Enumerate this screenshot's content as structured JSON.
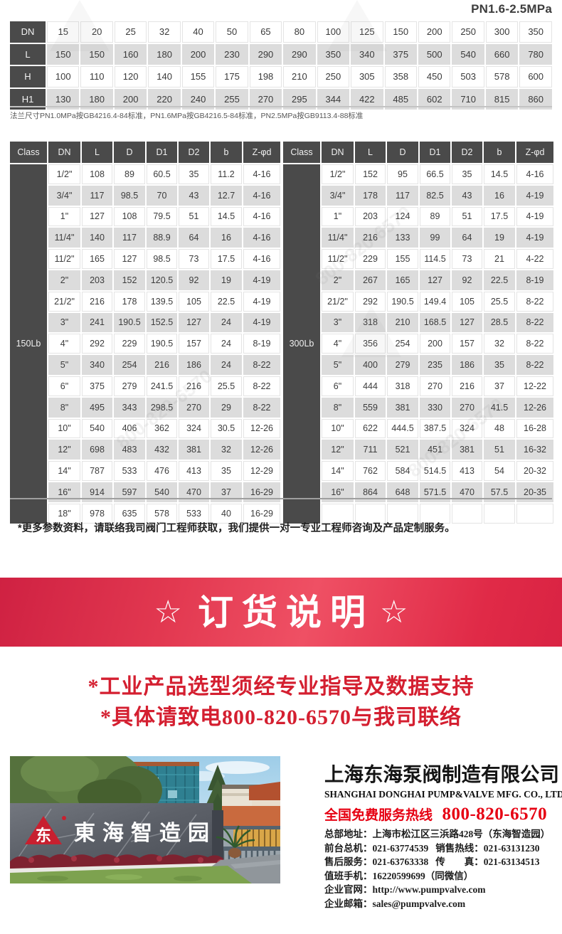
{
  "header": {
    "pressure_label": "PN1.6-2.5MPa"
  },
  "dimensions_table": {
    "rows": [
      {
        "label": "DN",
        "values": [
          "15",
          "20",
          "25",
          "32",
          "40",
          "50",
          "65",
          "80",
          "100",
          "125",
          "150",
          "200",
          "250",
          "300",
          "350"
        ]
      },
      {
        "label": "L",
        "values": [
          "150",
          "150",
          "160",
          "180",
          "200",
          "230",
          "290",
          "290",
          "350",
          "340",
          "375",
          "500",
          "540",
          "660",
          "780"
        ]
      },
      {
        "label": "H",
        "values": [
          "100",
          "110",
          "120",
          "140",
          "155",
          "175",
          "198",
          "210",
          "250",
          "305",
          "358",
          "450",
          "503",
          "578",
          "600"
        ]
      },
      {
        "label": "H1",
        "values": [
          "130",
          "180",
          "200",
          "220",
          "240",
          "255",
          "270",
          "295",
          "344",
          "422",
          "485",
          "602",
          "710",
          "815",
          "860"
        ]
      }
    ]
  },
  "flange_note": "法兰尺寸PN1.0MPa按GB4216.4-84标准，PN1.6MPa按GB4216.5-84标准，PN2.5MPa按GB9113.4-88标准",
  "class_tables": [
    {
      "class_label": "150Lb",
      "headers": [
        "Class",
        "DN",
        "L",
        "D",
        "D1",
        "D2",
        "b",
        "Z-φd"
      ],
      "rows": [
        [
          "1/2\"",
          "108",
          "89",
          "60.5",
          "35",
          "11.2",
          "4-16"
        ],
        [
          "3/4\"",
          "117",
          "98.5",
          "70",
          "43",
          "12.7",
          "4-16"
        ],
        [
          "1\"",
          "127",
          "108",
          "79.5",
          "51",
          "14.5",
          "4-16"
        ],
        [
          "11/4\"",
          "140",
          "117",
          "88.9",
          "64",
          "16",
          "4-16"
        ],
        [
          "11/2\"",
          "165",
          "127",
          "98.5",
          "73",
          "17.5",
          "4-16"
        ],
        [
          "2\"",
          "203",
          "152",
          "120.5",
          "92",
          "19",
          "4-19"
        ],
        [
          "21/2\"",
          "216",
          "178",
          "139.5",
          "105",
          "22.5",
          "4-19"
        ],
        [
          "3\"",
          "241",
          "190.5",
          "152.5",
          "127",
          "24",
          "4-19"
        ],
        [
          "4\"",
          "292",
          "229",
          "190.5",
          "157",
          "24",
          "8-19"
        ],
        [
          "5\"",
          "340",
          "254",
          "216",
          "186",
          "24",
          "8-22"
        ],
        [
          "6\"",
          "375",
          "279",
          "241.5",
          "216",
          "25.5",
          "8-22"
        ],
        [
          "8\"",
          "495",
          "343",
          "298.5",
          "270",
          "29",
          "8-22"
        ],
        [
          "10\"",
          "540",
          "406",
          "362",
          "324",
          "30.5",
          "12-26"
        ],
        [
          "12\"",
          "698",
          "483",
          "432",
          "381",
          "32",
          "12-26"
        ],
        [
          "14\"",
          "787",
          "533",
          "476",
          "413",
          "35",
          "12-29"
        ],
        [
          "16\"",
          "914",
          "597",
          "540",
          "470",
          "37",
          "16-29"
        ],
        [
          "18\"",
          "978",
          "635",
          "578",
          "533",
          "40",
          "16-29"
        ]
      ]
    },
    {
      "class_label": "300Lb",
      "headers": [
        "Class",
        "DN",
        "L",
        "D",
        "D1",
        "D2",
        "b",
        "Z-φd"
      ],
      "rows": [
        [
          "1/2\"",
          "152",
          "95",
          "66.5",
          "35",
          "14.5",
          "4-16"
        ],
        [
          "3/4\"",
          "178",
          "117",
          "82.5",
          "43",
          "16",
          "4-19"
        ],
        [
          "1\"",
          "203",
          "124",
          "89",
          "51",
          "17.5",
          "4-19"
        ],
        [
          "11/4\"",
          "216",
          "133",
          "99",
          "64",
          "19",
          "4-19"
        ],
        [
          "11/2\"",
          "229",
          "155",
          "114.5",
          "73",
          "21",
          "4-22"
        ],
        [
          "2\"",
          "267",
          "165",
          "127",
          "92",
          "22.5",
          "8-19"
        ],
        [
          "21/2\"",
          "292",
          "190.5",
          "149.4",
          "105",
          "25.5",
          "8-22"
        ],
        [
          "3\"",
          "318",
          "210",
          "168.5",
          "127",
          "28.5",
          "8-22"
        ],
        [
          "4\"",
          "356",
          "254",
          "200",
          "157",
          "32",
          "8-22"
        ],
        [
          "5\"",
          "400",
          "279",
          "235",
          "186",
          "35",
          "8-22"
        ],
        [
          "6\"",
          "444",
          "318",
          "270",
          "216",
          "37",
          "12-22"
        ],
        [
          "8\"",
          "559",
          "381",
          "330",
          "270",
          "41.5",
          "12-26"
        ],
        [
          "10\"",
          "622",
          "444.5",
          "387.5",
          "324",
          "48",
          "16-28"
        ],
        [
          "12\"",
          "711",
          "521",
          "451",
          "381",
          "51",
          "16-32"
        ],
        [
          "14\"",
          "762",
          "584",
          "514.5",
          "413",
          "54",
          "20-32"
        ],
        [
          "16\"",
          "864",
          "648",
          "571.5",
          "470",
          "57.5",
          "20-35"
        ],
        [
          "",
          "",
          "",
          "",
          "",
          "",
          ""
        ]
      ]
    }
  ],
  "param_note": "*更多参数资料，请联络我司阀门工程师获取，我们提供一对一专业工程师咨询及产品定制服务。",
  "banner": {
    "star_left": "☆",
    "title": "订货说明",
    "star_right": "☆"
  },
  "red_notes": [
    "*工业产品选型须经专业指导及数据支持",
    "*具体请致电800-820-6570与我司联络"
  ],
  "watermark_text": "800-820-6570",
  "photo": {
    "sign_text": "東海智造园",
    "logo_char": "东"
  },
  "footer": {
    "company_cn": "上海东海泵阀制造有限公司",
    "company_en": "SHANGHAI DONGHAI PUMP&VALVE MFG. CO., LTD.",
    "hotline_label": "全国免费服务热线",
    "hotline_number": "800-820-6570",
    "contacts": [
      {
        "label": "总部地址：",
        "value": "上海市松江区三浜路428号（东海智造园）"
      },
      {
        "label": "前台总机：",
        "value": "021-63774539",
        "label2": "销售热线：",
        "value2": "021-63131230"
      },
      {
        "label": "售后服务：",
        "value": "021-63763338",
        "label2": "传　　真：",
        "value2": "021-63134513"
      },
      {
        "label": "值班手机：",
        "value": "16220599699（同微信）"
      },
      {
        "label": "企业官网：",
        "value": "http://www.pumpvalve.com"
      },
      {
        "label": "企业邮箱：",
        "value": "sales@pumpvalve.com"
      }
    ]
  },
  "colors": {
    "table_header_dark": "#4a4a4a",
    "row_shade_gray": "#dcdcdc",
    "banner_red": "#e23850",
    "note_red": "#d41f30",
    "hotline_red": "#e60012",
    "logo_red": "#c8202f"
  }
}
